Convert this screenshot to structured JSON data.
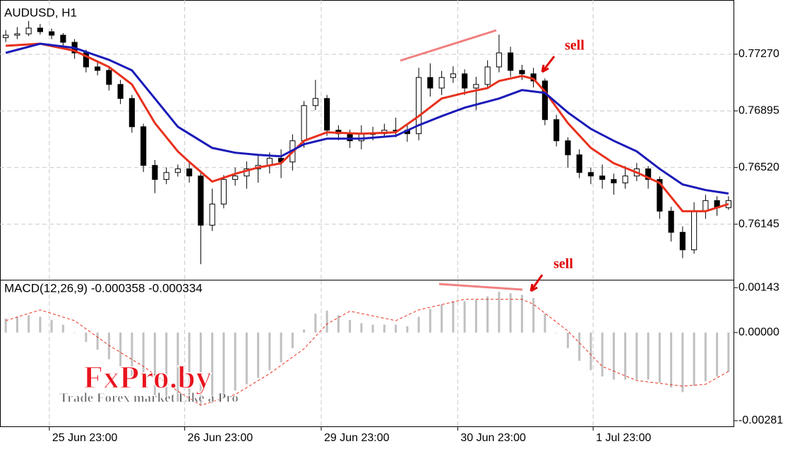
{
  "chart_data": [
    {
      "type": "candlestick",
      "title": "AUDUSD, H1",
      "annotation": "sell",
      "grid": true,
      "up_color": "#ffffff",
      "down_color": "#000000",
      "open": [
        0.7738,
        0.77396,
        0.77405,
        0.77443,
        0.77419,
        0.77396,
        0.77349,
        0.77279,
        0.77186,
        0.77163,
        0.7707,
        0.76977,
        0.7679,
        0.76534,
        0.76441,
        0.76487,
        0.76511,
        0.76464,
        0.76138,
        0.76278,
        0.76441,
        0.76464,
        0.76511,
        0.76534,
        0.76581,
        0.76557,
        0.76697,
        0.7693,
        0.76977,
        0.76767,
        0.76744,
        0.76697,
        0.76744,
        0.76744,
        0.76767,
        0.76767,
        0.76744,
        0.77116,
        0.77046,
        0.77116,
        0.7714,
        0.77046,
        0.7707,
        0.77186,
        0.77279,
        0.77163,
        0.7714,
        0.77093,
        0.76837,
        0.76697,
        0.76604,
        0.76487,
        0.76464,
        0.76441,
        0.76418,
        0.76464,
        0.76511,
        0.76441,
        0.76231,
        0.76091,
        0.75975,
        0.76231,
        0.76301,
        0.76254
      ],
      "high": [
        0.7743,
        0.7745,
        0.7749,
        0.7747,
        0.7744,
        0.7741,
        0.7737,
        0.773,
        0.7723,
        0.7719,
        0.771,
        0.77,
        0.7681,
        0.7657,
        0.7652,
        0.7654,
        0.7656,
        0.765,
        0.7638,
        0.7647,
        0.7652,
        0.7656,
        0.766,
        0.7662,
        0.7664,
        0.7674,
        0.7696,
        0.771,
        0.77,
        0.768,
        0.7677,
        0.768,
        0.7679,
        0.7681,
        0.7685,
        0.768,
        0.7718,
        0.7721,
        0.7716,
        0.7719,
        0.7717,
        0.7712,
        0.7723,
        0.774,
        0.7732,
        0.772,
        0.7718,
        0.7711,
        0.7687,
        0.7672,
        0.7664,
        0.7652,
        0.7654,
        0.7648,
        0.7653,
        0.7655,
        0.7653,
        0.7646,
        0.7626,
        0.7613,
        0.7629,
        0.7634,
        0.7633,
        0.7633
      ],
      "low": [
        0.7735,
        0.7737,
        0.7739,
        0.774,
        0.7737,
        0.7732,
        0.7724,
        0.7715,
        0.7713,
        0.7703,
        0.7694,
        0.7675,
        0.7649,
        0.7635,
        0.7641,
        0.7646,
        0.7642,
        0.7588,
        0.761,
        0.7625,
        0.764,
        0.7638,
        0.7642,
        0.7648,
        0.7645,
        0.765,
        0.7665,
        0.769,
        0.7673,
        0.767,
        0.7665,
        0.7664,
        0.767,
        0.7672,
        0.7672,
        0.7669,
        0.767,
        0.7699,
        0.77,
        0.7708,
        0.77,
        0.769,
        0.7704,
        0.7715,
        0.7712,
        0.771,
        0.7705,
        0.768,
        0.7666,
        0.7652,
        0.7645,
        0.7641,
        0.7638,
        0.7634,
        0.7638,
        0.7643,
        0.7638,
        0.7618,
        0.7603,
        0.7592,
        0.7595,
        0.7618,
        0.762,
        0.7624
      ],
      "close": [
        0.77396,
        0.77405,
        0.77443,
        0.77419,
        0.77396,
        0.77349,
        0.77279,
        0.77186,
        0.77163,
        0.7707,
        0.76977,
        0.7679,
        0.76534,
        0.76441,
        0.76487,
        0.76511,
        0.76464,
        0.76138,
        0.76278,
        0.76441,
        0.76464,
        0.76511,
        0.76534,
        0.76581,
        0.76557,
        0.76697,
        0.7693,
        0.76977,
        0.76767,
        0.76744,
        0.76697,
        0.76744,
        0.76744,
        0.76767,
        0.76767,
        0.76744,
        0.77116,
        0.77046,
        0.77116,
        0.7714,
        0.77046,
        0.7707,
        0.77186,
        0.77279,
        0.77163,
        0.7714,
        0.77093,
        0.76837,
        0.76697,
        0.76604,
        0.76487,
        0.76464,
        0.76441,
        0.76418,
        0.76464,
        0.76511,
        0.76441,
        0.76231,
        0.76091,
        0.75975,
        0.76231,
        0.76301,
        0.76254,
        0.76301
      ],
      "series": [
        {
          "color": "#e8301c",
          "x": [
            0,
            3,
            6,
            9,
            11,
            13,
            15,
            16,
            18,
            20,
            22,
            24,
            26,
            28,
            31,
            34,
            36,
            38,
            40,
            42,
            43,
            45,
            46,
            47,
            49,
            51,
            53,
            55,
            57,
            59,
            61,
            63
          ],
          "values": [
            0.77326,
            0.7734,
            0.77293,
            0.77186,
            0.7707,
            0.76814,
            0.76627,
            0.76557,
            0.76427,
            0.76478,
            0.7652,
            0.76548,
            0.76697,
            0.76753,
            0.76744,
            0.76753,
            0.7686,
            0.76977,
            0.77014,
            0.77046,
            0.77093,
            0.77126,
            0.77107,
            0.77023,
            0.76814,
            0.7665,
            0.76548,
            0.76487,
            0.76418,
            0.76231,
            0.76231,
            0.76278
          ]
        },
        {
          "color": "#1a1ab8",
          "x": [
            0,
            3,
            6,
            9,
            11,
            13,
            15,
            18,
            20,
            22,
            24,
            26,
            28,
            31,
            34,
            36,
            38,
            40,
            43,
            45,
            47,
            49,
            51,
            53,
            55,
            57,
            59,
            61,
            63
          ],
          "values": [
            0.77279,
            0.7734,
            0.77312,
            0.77233,
            0.77163,
            0.76977,
            0.7679,
            0.7665,
            0.76618,
            0.76604,
            0.76594,
            0.76674,
            0.76711,
            0.76711,
            0.7673,
            0.768,
            0.7686,
            0.76916,
            0.76977,
            0.77033,
            0.77014,
            0.76884,
            0.76776,
            0.76697,
            0.76627,
            0.76511,
            0.76408,
            0.76371,
            0.76348
          ]
        }
      ],
      "ylim": [
        0.75777,
        0.77629
      ],
      "yticks": [
        {
          "value": 0.7727,
          "label": "0.77270"
        },
        0.76895,
        {
          "value": 0.7652,
          "label": "0.76520"
        },
        0.76145
      ]
    },
    {
      "type": "macd",
      "title": "MACD(12,26,9) -0.000358 -0.000334",
      "annotation": "sell",
      "grid": true,
      "color": "#c0c0c0",
      "values": [
        0.00045,
        0.0005,
        0.00055,
        0.0005,
        0.0004,
        0.00025,
        0,
        -0.0003,
        -0.00055,
        -0.00085,
        -0.0011,
        -0.0014,
        -0.00175,
        -0.002,
        -0.00215,
        -0.0022,
        -0.0022,
        -0.0023,
        -0.00225,
        -0.00205,
        -0.00185,
        -0.00165,
        -0.00145,
        -0.0012,
        -0.00095,
        -0.0005,
        0.0001,
        0.0006,
        0.0007,
        0.00055,
        0.0004,
        0.0003,
        0.00025,
        0.00025,
        0.00025,
        0.0002,
        0.0005,
        0.00075,
        0.0009,
        0.001,
        0.001,
        0.00105,
        0.00115,
        0.0013,
        0.00125,
        0.0012,
        0.0011,
        0.0006,
        0,
        -0.0005,
        -0.0009,
        -0.0012,
        -0.0014,
        -0.0015,
        -0.0015,
        -0.0015,
        -0.0015,
        -0.0016,
        -0.00175,
        -0.0019,
        -0.0017,
        -0.00155,
        -0.0014,
        -0.00125
      ],
      "series": [
        {
          "color": "#e8301c",
          "style": "dashed",
          "x": [
            0,
            3,
            6,
            9,
            12,
            15,
            17,
            20,
            23,
            26,
            28,
            30,
            34,
            36,
            40,
            45,
            46,
            49,
            52,
            55,
            59,
            61,
            63
          ],
          "values": [
            0.00038,
            0.00072,
            0.00038,
            -0.00041,
            -0.00108,
            -0.00187,
            -0.00232,
            -0.00198,
            -0.00131,
            -0.00052,
            0.00027,
            0.00068,
            0.00038,
            0.00072,
            0.00106,
            0.00106,
            0.0009,
            5e-05,
            -0.00108,
            -0.00153,
            -0.00171,
            -0.00165,
            -0.00124
          ]
        }
      ],
      "ylim": [
        -0.00299,
        0.00166
      ],
      "yticks": [
        0.00143,
        {
          "value": 0,
          "label": "0.00000"
        },
        -0.00281
      ],
      "xlim": [
        -0.5,
        63.5
      ],
      "xticks": [
        {
          "value": 3.8,
          "label": "25 Jun 23:00"
        },
        {
          "value": 15.6,
          "label": "26 Jun 23:00"
        },
        {
          "value": 27.5,
          "label": "29 Jun 23:00"
        },
        {
          "value": 39.4,
          "label": "30 Jun 23:00"
        },
        {
          "value": 51.2,
          "label": "1 Jul 23:00"
        }
      ]
    }
  ],
  "watermark": {
    "brand": "FxPro.by",
    "tagline": "Trade Forex market Like a Pro"
  }
}
